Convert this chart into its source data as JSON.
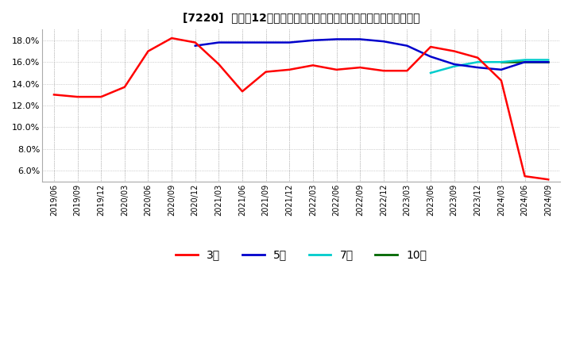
{
  "title": "[7220]  売上高12か月移動合計の対前年同期増減率の標準偏差の推移",
  "ylim": [
    0.05,
    0.19
  ],
  "yticks": [
    0.06,
    0.08,
    0.1,
    0.12,
    0.14,
    0.16,
    0.18
  ],
  "background_color": "#ffffff",
  "plot_bg_color": "#ffffff",
  "legend_entries": [
    "3年",
    "5年",
    "7年",
    "10年"
  ],
  "legend_colors": [
    "#ff0000",
    "#0000cc",
    "#00cccc",
    "#006600"
  ],
  "dates": [
    "2019/06",
    "2019/09",
    "2019/12",
    "2020/03",
    "2020/06",
    "2020/09",
    "2020/12",
    "2021/03",
    "2021/06",
    "2021/09",
    "2021/12",
    "2022/03",
    "2022/06",
    "2022/09",
    "2022/12",
    "2023/03",
    "2023/06",
    "2023/09",
    "2023/12",
    "2024/03",
    "2024/06",
    "2024/09"
  ],
  "series_3yr": [
    0.13,
    0.128,
    0.128,
    0.137,
    0.17,
    0.182,
    0.178,
    0.158,
    0.133,
    0.151,
    0.153,
    0.157,
    0.153,
    0.155,
    0.152,
    0.152,
    0.174,
    0.17,
    0.164,
    0.143,
    0.055,
    0.052
  ],
  "series_5yr": [
    null,
    null,
    null,
    null,
    null,
    null,
    0.175,
    0.178,
    0.178,
    0.178,
    0.178,
    0.18,
    0.181,
    0.181,
    0.179,
    0.175,
    0.165,
    0.158,
    0.155,
    0.153,
    0.16,
    0.16
  ],
  "series_7yr": [
    null,
    null,
    null,
    null,
    null,
    null,
    null,
    null,
    null,
    null,
    null,
    null,
    null,
    null,
    null,
    null,
    0.15,
    0.156,
    0.16,
    0.16,
    0.162,
    0.162
  ],
  "series_10yr": [
    null,
    null,
    null,
    null,
    null,
    null,
    null,
    null,
    null,
    null,
    null,
    null,
    null,
    null,
    null,
    null,
    null,
    null,
    null,
    0.16,
    0.16,
    0.16
  ]
}
